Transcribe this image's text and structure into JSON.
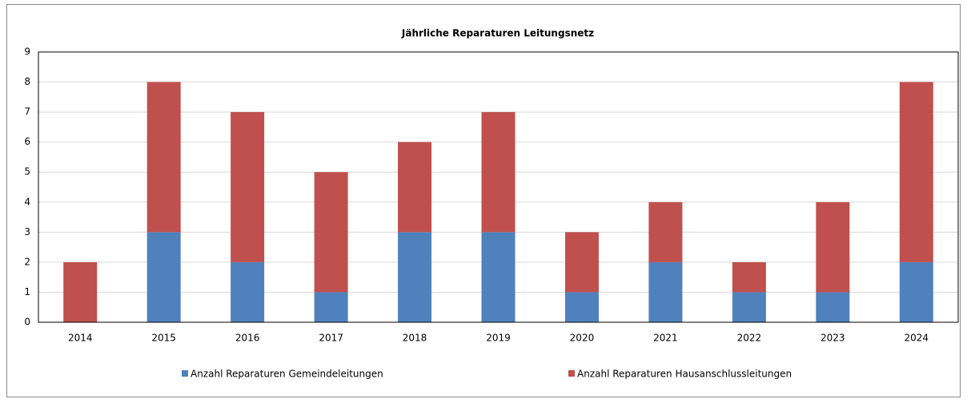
{
  "chart_data": {
    "type": "stacked_bar",
    "title": "Jährliche Reparaturen Leitungsnetz",
    "categories": [
      "2014",
      "2015",
      "2016",
      "2017",
      "2018",
      "2019",
      "2020",
      "2021",
      "2022",
      "2023",
      "2024"
    ],
    "series": [
      {
        "name": "Anzahl Reparaturen Gemeindeleitungen",
        "color": "#4f81bd",
        "values": [
          0,
          3,
          2,
          1,
          3,
          3,
          1,
          2,
          1,
          1,
          2
        ]
      },
      {
        "name": "Anzahl Reparaturen Hausanschlussleitungen",
        "color": "#c0504d",
        "values": [
          2,
          5,
          5,
          4,
          3,
          4,
          2,
          2,
          1,
          3,
          6
        ]
      }
    ],
    "ylim": [
      0,
      9
    ],
    "yticks": [
      0,
      1,
      2,
      3,
      4,
      5,
      6,
      7,
      8,
      9
    ],
    "grid": true,
    "legend": "bottom"
  }
}
